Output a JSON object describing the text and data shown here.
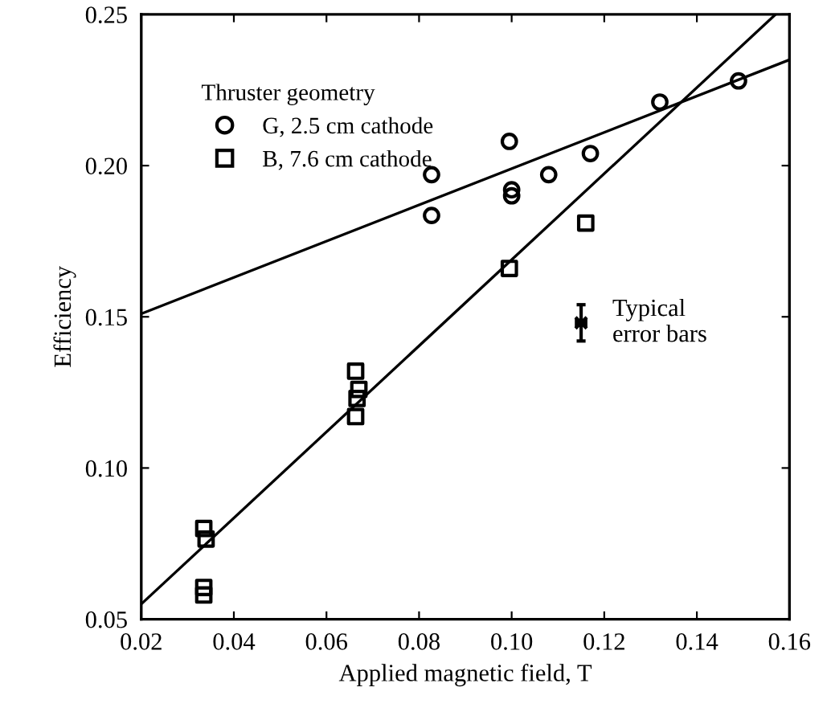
{
  "chart_data": {
    "type": "scatter",
    "xlabel": "Applied magnetic field, T",
    "ylabel": "Efficiency",
    "legend_title": "Thruster geometry",
    "legend": "top left",
    "grid": false,
    "xlim": [
      0.02,
      0.16
    ],
    "xticks": [
      0.02,
      0.04,
      0.06,
      0.08,
      {
        "value": 0.1,
        "label": "0.10"
      },
      0.12,
      0.14,
      0.16
    ],
    "ylim": [
      0.05,
      0.25
    ],
    "yticks": [
      0.05,
      {
        "value": 0.1,
        "label": "0.10"
      },
      0.15,
      {
        "value": 0.2,
        "label": "0.20"
      },
      0.25
    ],
    "series": [
      {
        "name": "G, 2.5 cm cathode",
        "marker": "circle",
        "color": "#000000",
        "x": [
          0.0827,
          0.0827,
          0.0995,
          0.1,
          0.1,
          0.108,
          0.117,
          0.132,
          0.149
        ],
        "values": [
          0.197,
          0.1835,
          0.208,
          0.192,
          0.19,
          0.197,
          0.204,
          0.221,
          0.228
        ]
      },
      {
        "name": "B, 7.6 cm cathode",
        "marker": "square",
        "color": "#000000",
        "x": [
          0.0995,
          0.116,
          0.0663,
          0.067,
          0.0666,
          0.0663,
          0.0335,
          0.034,
          0.0335,
          0.0335
        ],
        "values": [
          0.166,
          0.181,
          0.132,
          0.126,
          0.123,
          0.117,
          0.08,
          0.0765,
          0.0605,
          0.058
        ]
      },
      {
        "type": "line",
        "color": "#000000",
        "x": [
          0.02,
          0.16
        ],
        "values": [
          0.151,
          0.235
        ]
      },
      {
        "type": "line",
        "color": "#000000",
        "x": [
          0.02,
          0.157
        ],
        "values": [
          0.055,
          0.25
        ]
      },
      {
        "marker": "cross",
        "color": "#000000",
        "x": [
          0.115
        ],
        "values": [
          0.148
        ],
        "errors": [
          0.006
        ],
        "xerrors": [
          0.001
        ]
      }
    ],
    "annotations": [
      {
        "text": "Typical\nerror bars",
        "x": 0.115,
        "y": 0.148
      }
    ]
  }
}
